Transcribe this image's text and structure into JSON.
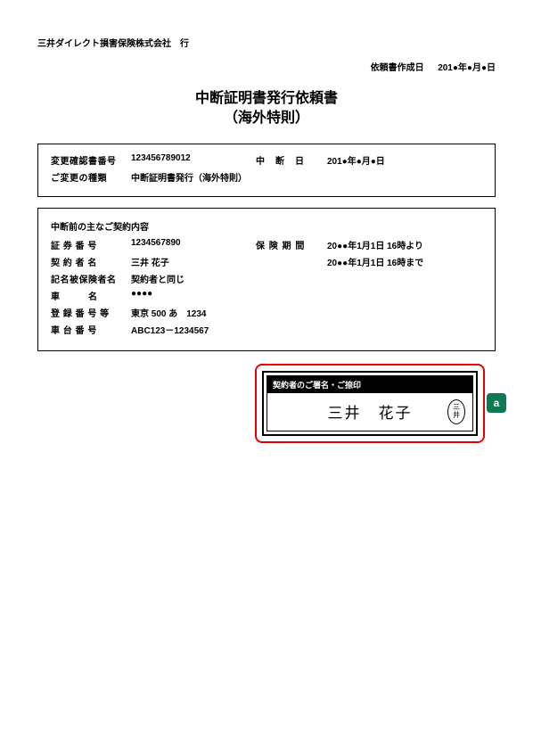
{
  "header": {
    "company": "三井ダイレクト損害保険株式会社　行",
    "createdLabel": "依頼書作成日",
    "createdDate": "201●年●月●日"
  },
  "title": {
    "line1": "中断証明書発行依頼書",
    "line2": "（海外特則）"
  },
  "box1": {
    "confirmNoLabel": "変更確認書番号",
    "confirmNo": "123456789012",
    "interruptDateLabel": "中　断　日",
    "interruptDate": "201●年●月●日",
    "changeTypeLabel": "ご変更の種類",
    "changeType": "中断証明書発行（海外特則）"
  },
  "box2": {
    "sectionTitle": "中断前の主なご契約内容",
    "policyNoLabel": "証 券 番 号",
    "policyNo": "1234567890",
    "periodLabel": "保 険 期 間",
    "periodFrom": "20●●年1月1日 16時より",
    "periodTo": "20●●年1月1日 16時まで",
    "holderLabel": "契 約 者 名",
    "holder": "三井 花子",
    "insuredLabel": "記名被保険者名",
    "insured": "契約者と同じ",
    "carNameLabel": "車　　　名",
    "carName": "●●●●",
    "regNoLabel": "登 録 番 号 等",
    "regNo": "東京 500 あ　1234",
    "chassisLabel": "車 台 番 号",
    "chassis": "ABC123－1234567"
  },
  "signature": {
    "header": "契約者のご署名・ご捺印",
    "name": "三井　花子",
    "seal1": "三",
    "seal2": "井",
    "tag": "a"
  },
  "colors": {
    "red": "#e60000",
    "green": "#0d7a52",
    "black": "#000000",
    "white": "#ffffff"
  }
}
